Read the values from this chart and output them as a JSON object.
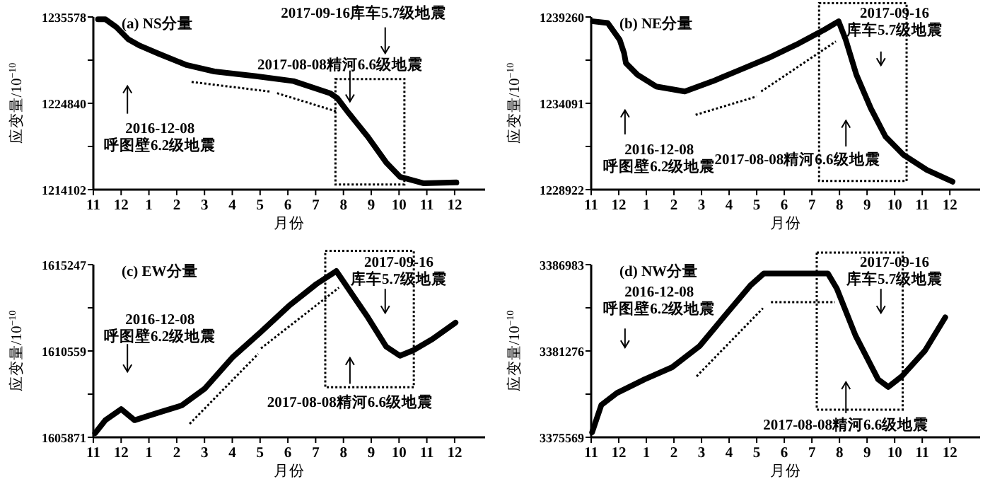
{
  "chart_data": [
    {
      "type": "line",
      "title": "(a) NS分量",
      "xlabel": "月份",
      "ylabel": "应变量/10$^{−10}$",
      "xlim": [
        "2016-11-01",
        "2018-01-04"
      ],
      "ylim": [
        1214102,
        1235578
      ],
      "xticks": [
        {
          "value": "2016-11",
          "label": "11"
        },
        {
          "value": "2016-12",
          "label": "12"
        },
        {
          "value": "2017-01",
          "label": "1"
        },
        {
          "value": "2017-02",
          "label": "2"
        },
        {
          "value": "2017-03",
          "label": "3"
        },
        {
          "value": "2017-04",
          "label": "4"
        },
        {
          "value": "2017-05",
          "label": "5"
        },
        {
          "value": "2017-06",
          "label": "6"
        },
        {
          "value": "2017-07",
          "label": "7"
        },
        {
          "value": "2017-08",
          "label": "8"
        },
        {
          "value": "2017-09",
          "label": "9"
        },
        {
          "value": "2017-10",
          "label": "10"
        },
        {
          "value": "2017-11",
          "label": "11"
        },
        {
          "value": "2017-12",
          "label": "12"
        }
      ],
      "yticks": [
        1214102,
        {
          "value": 1219471,
          "label": null
        },
        1224840,
        {
          "value": 1230209,
          "label": null
        },
        1235578
      ],
      "series": [
        {
          "color": "#000000",
          "x": [
            "2016-11-06",
            "2016-11-14",
            "2016-11-26",
            "2016-12-09",
            "2016-12-22",
            "2017-01-12",
            "2017-02-11",
            "2017-03-12",
            "2017-04-27",
            "2017-06-07",
            "2017-07-17",
            "2017-07-25",
            "2017-08-07",
            "2017-08-28",
            "2017-09-17",
            "2017-10-02",
            "2017-10-28",
            "2017-12-03"
          ],
          "values": [
            1235300,
            1235300,
            1234300,
            1232800,
            1232000,
            1231000,
            1229600,
            1228800,
            1228200,
            1227600,
            1226100,
            1225500,
            1223600,
            1220700,
            1217500,
            1215700,
            1214900,
            1215000
          ]
        },
        {
          "color": "#000000",
          "line_style": "dotted",
          "x": [
            "2017-02-16",
            "2017-05-12"
          ],
          "values": [
            1227500,
            1226300
          ]
        },
        {
          "color": "#000000",
          "line_style": "dotted",
          "x": [
            "2017-05-20",
            "2017-07-25"
          ],
          "values": [
            1226100,
            1223800
          ]
        }
      ],
      "annotations": [
        "2016-12-08\n呼图壁6.2级地震",
        "2017-08-08精河6.6级地震",
        "2017-09-16库车5.7级地震"
      ]
    },
    {
      "type": "line",
      "title": "(b) NE分量",
      "xlabel": "月份",
      "ylabel": "应变量/10$^{−10}$",
      "xlim": [
        "2016-11-01",
        "2018-01-04"
      ],
      "ylim": [
        1228922,
        1239260
      ],
      "xticks": [
        {
          "value": "2016-11",
          "label": "11"
        },
        {
          "value": "2016-12",
          "label": "12"
        },
        {
          "value": "2017-01",
          "label": "1"
        },
        {
          "value": "2017-02",
          "label": "2"
        },
        {
          "value": "2017-03",
          "label": "3"
        },
        {
          "value": "2017-04",
          "label": "4"
        },
        {
          "value": "2017-05",
          "label": "5"
        },
        {
          "value": "2017-06",
          "label": "6"
        },
        {
          "value": "2017-07",
          "label": "7"
        },
        {
          "value": "2017-08",
          "label": "8"
        },
        {
          "value": "2017-09",
          "label": "9"
        },
        {
          "value": "2017-10",
          "label": "10"
        },
        {
          "value": "2017-11",
          "label": "11"
        },
        {
          "value": "2017-12",
          "label": "12"
        }
      ],
      "yticks": [
        1228922,
        {
          "value": 1231506.5,
          "label": null
        },
        1234091,
        {
          "value": 1236675.5,
          "label": null
        },
        1239260
      ],
      "series": [
        {
          "color": "#000000",
          "x": [
            "2016-11-03",
            "2016-11-19",
            "2016-12-02",
            "2016-12-07",
            "2016-12-09",
            "2016-12-22",
            "2017-01-12",
            "2017-02-12",
            "2017-03-13",
            "2017-04-13",
            "2017-05-14",
            "2017-06-14",
            "2017-07-15",
            "2017-07-31",
            "2017-08-08",
            "2017-08-20",
            "2017-09-05",
            "2017-09-21",
            "2017-10-11",
            "2017-11-06",
            "2017-12-04"
          ],
          "values": [
            1239000,
            1238900,
            1237900,
            1237100,
            1236500,
            1235800,
            1235100,
            1234800,
            1235400,
            1236100,
            1236800,
            1237600,
            1238500,
            1239000,
            1237900,
            1235800,
            1233800,
            1232100,
            1231000,
            1230100,
            1229400
          ]
        },
        {
          "color": "#000000",
          "line_style": "dotted",
          "x": [
            "2017-02-23",
            "2017-05-01"
          ],
          "values": [
            1233400,
            1234500
          ]
        },
        {
          "color": "#000000",
          "line_style": "dotted",
          "x": [
            "2017-05-06",
            "2017-07-28"
          ],
          "values": [
            1234800,
            1237800
          ]
        }
      ],
      "annotations": [
        "2016-12-08\n呼图壁6.2级地震",
        "2017-08-08精河6.6级地震",
        "2017-09-16\n库车5.7级地震"
      ]
    },
    {
      "type": "line",
      "title": "(c) EW分量",
      "xlabel": "月份",
      "ylabel": "应变量/10$^{−10}$",
      "xlim": [
        "2016-11-01",
        "2018-01-04"
      ],
      "ylim": [
        1605871,
        1615247
      ],
      "xticks": [
        {
          "value": "2016-11",
          "label": "11"
        },
        {
          "value": "2016-12",
          "label": "12"
        },
        {
          "value": "2017-01",
          "label": "1"
        },
        {
          "value": "2017-02",
          "label": "2"
        },
        {
          "value": "2017-03",
          "label": "3"
        },
        {
          "value": "2017-04",
          "label": "4"
        },
        {
          "value": "2017-05",
          "label": "5"
        },
        {
          "value": "2017-06",
          "label": "6"
        },
        {
          "value": "2017-07",
          "label": "7"
        },
        {
          "value": "2017-08",
          "label": "8"
        },
        {
          "value": "2017-09",
          "label": "9"
        },
        {
          "value": "2017-10",
          "label": "10"
        },
        {
          "value": "2017-11",
          "label": "11"
        },
        {
          "value": "2017-12",
          "label": "12"
        }
      ],
      "yticks": [
        1605871,
        {
          "value": 1608215,
          "label": null
        },
        1610559,
        {
          "value": 1612903,
          "label": null
        },
        1615247
      ],
      "series": [
        {
          "color": "#000000",
          "x": [
            "2016-11-03",
            "2016-11-14",
            "2016-12-01",
            "2016-12-16",
            "2017-01-11",
            "2017-02-06",
            "2017-03-01",
            "2017-04-01",
            "2017-05-02",
            "2017-06-02",
            "2017-07-02",
            "2017-07-24",
            "2017-08-07",
            "2017-08-28",
            "2017-09-17",
            "2017-10-02",
            "2017-10-17",
            "2017-11-07",
            "2017-12-02"
          ],
          "values": [
            1606100,
            1606800,
            1607400,
            1606800,
            1607200,
            1607600,
            1608500,
            1610200,
            1611600,
            1613000,
            1614200,
            1614900,
            1613900,
            1612400,
            1610800,
            1610300,
            1610600,
            1611200,
            1612100
          ]
        },
        {
          "color": "#000000",
          "line_style": "dotted",
          "x": [
            "2017-02-14",
            "2017-04-29"
          ],
          "values": [
            1606600,
            1610400
          ]
        },
        {
          "color": "#000000",
          "line_style": "dotted",
          "x": [
            "2017-05-02",
            "2017-07-27"
          ],
          "values": [
            1610700,
            1614000
          ]
        }
      ],
      "annotations": [
        "2016-12-08\n呼图壁6.2级地震",
        "2017-08-08精河6.6级地震",
        "2017-09-16\n库车5.7级地震"
      ]
    },
    {
      "type": "line",
      "title": "(d) NW分量",
      "xlabel": "月份",
      "ylabel": "应变量/10$^{−10}$",
      "xlim": [
        "2016-11-01",
        "2018-01-04"
      ],
      "ylim": [
        3375569,
        3386983
      ],
      "xticks": [
        {
          "value": "2016-11",
          "label": "11"
        },
        {
          "value": "2016-12",
          "label": "12"
        },
        {
          "value": "2017-01",
          "label": "1"
        },
        {
          "value": "2017-02",
          "label": "2"
        },
        {
          "value": "2017-03",
          "label": "3"
        },
        {
          "value": "2017-04",
          "label": "4"
        },
        {
          "value": "2017-05",
          "label": "5"
        },
        {
          "value": "2017-06",
          "label": "6"
        },
        {
          "value": "2017-07",
          "label": "7"
        },
        {
          "value": "2017-08",
          "label": "8"
        },
        {
          "value": "2017-09",
          "label": "9"
        },
        {
          "value": "2017-10",
          "label": "10"
        },
        {
          "value": "2017-11",
          "label": "11"
        },
        {
          "value": "2017-12",
          "label": "12"
        }
      ],
      "yticks": [
        3375569,
        {
          "value": 3378422.5,
          "label": null
        },
        3381276,
        {
          "value": 3384129.5,
          "label": null
        },
        3386983
      ],
      "series": [
        {
          "color": "#000000",
          "x": [
            "2016-11-02",
            "2016-11-12",
            "2016-11-29",
            "2016-12-30",
            "2017-01-30",
            "2017-02-27",
            "2017-03-30",
            "2017-04-24",
            "2017-05-09",
            "2017-06-09",
            "2017-07-19",
            "2017-07-29",
            "2017-08-19",
            "2017-09-13",
            "2017-09-24",
            "2017-10-09",
            "2017-11-04",
            "2017-11-26"
          ],
          "values": [
            3375900,
            3377700,
            3378500,
            3379400,
            3380200,
            3381600,
            3383800,
            3385600,
            3386400,
            3386400,
            3386400,
            3385400,
            3382300,
            3379400,
            3378900,
            3379600,
            3381300,
            3383500
          ]
        },
        {
          "color": "#000000",
          "line_style": "dotted",
          "x": [
            "2017-02-24",
            "2017-05-08"
          ],
          "values": [
            3379600,
            3384100
          ]
        },
        {
          "color": "#000000",
          "line_style": "dotted",
          "x": [
            "2017-05-17",
            "2017-07-27"
          ],
          "values": [
            3384500,
            3384500
          ]
        }
      ],
      "annotations": [
        "2016-12-08\n呼图壁6.2级地震",
        "2017-08-08精河6.6级地震",
        "2017-09-16\n库车5.7级地震"
      ]
    }
  ]
}
